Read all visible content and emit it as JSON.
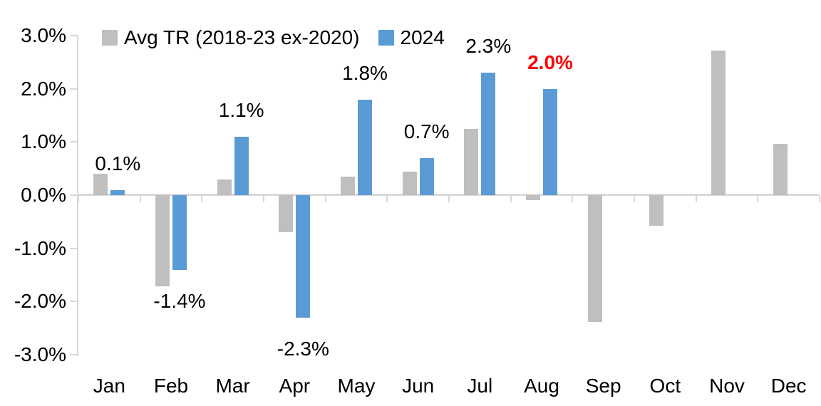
{
  "chart_data": {
    "type": "bar",
    "title": "",
    "categories": [
      "Jan",
      "Feb",
      "Mar",
      "Apr",
      "May",
      "Jun",
      "Jul",
      "Aug",
      "Sep",
      "Oct",
      "Nov",
      "Dec"
    ],
    "series": [
      {
        "name": "Avg TR (2018-23 ex-2020)",
        "color": "#BFBFBF",
        "values": [
          0.4,
          -1.72,
          0.29,
          -0.7,
          0.35,
          0.44,
          1.24,
          -0.09,
          -2.38,
          -0.58,
          2.72,
          0.97
        ]
      },
      {
        "name": "2024",
        "color": "#5B9BD5",
        "values": [
          0.1,
          -1.4,
          1.1,
          -2.3,
          1.8,
          0.7,
          2.3,
          2.0,
          null,
          null,
          null,
          null
        ],
        "data_labels": [
          "0.1%",
          "-1.4%",
          "1.1%",
          "-2.3%",
          "1.8%",
          "0.7%",
          "2.3%",
          "2.0%",
          null,
          null,
          null,
          null
        ],
        "label_highlight": {
          "month": "Aug",
          "color": "#FF0000",
          "bold": true
        }
      }
    ],
    "ylim": [
      -3,
      3
    ],
    "ytick_labels": [
      "3.0%",
      "2.0%",
      "1.0%",
      "0.0%",
      "-1.0%",
      "-2.0%",
      "-3.0%"
    ],
    "axis_color": "#D9D9D9",
    "label_color": "#000000",
    "legend_position": "top",
    "grid": false
  }
}
